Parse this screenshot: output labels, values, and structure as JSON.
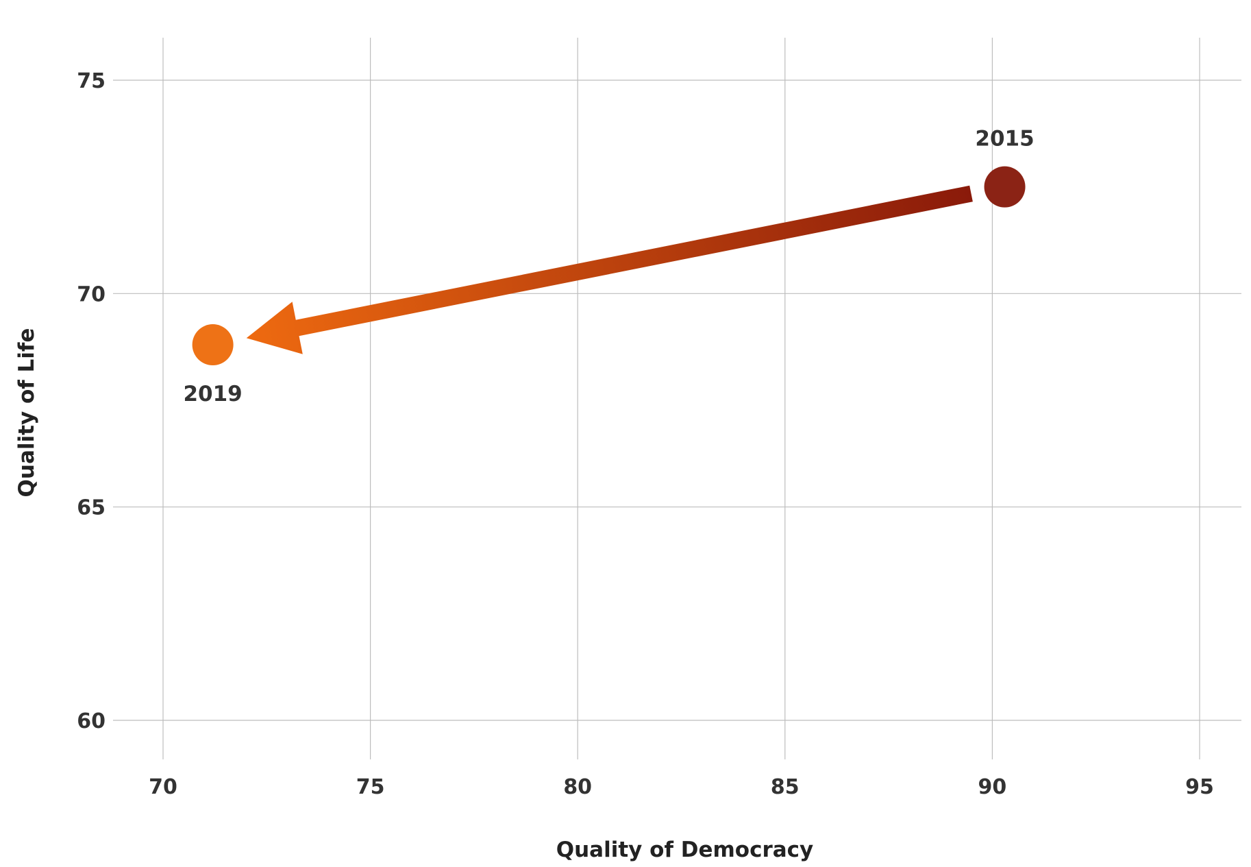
{
  "chart_data": {
    "type": "scatter",
    "xlabel": "Quality of Democracy",
    "ylabel": "Quality of Life",
    "xlim": [
      70,
      95
    ],
    "ylim": [
      60,
      75
    ],
    "x_ticks": [
      "70",
      "75",
      "80",
      "85",
      "90",
      "95"
    ],
    "y_ticks": [
      "60",
      "65",
      "70",
      "75"
    ],
    "grid": true,
    "points": [
      {
        "label": "2015",
        "x": 90.3,
        "y": 72.5,
        "color": "#8b2315"
      },
      {
        "label": "2019",
        "x": 71.2,
        "y": 68.8,
        "color": "#ee7216"
      }
    ],
    "arrow": {
      "from": "2015",
      "to": "2019",
      "color_start": "#8a1a0a",
      "color_end": "#ee6a10"
    }
  }
}
